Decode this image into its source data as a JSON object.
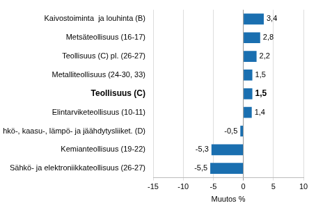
{
  "chart_data": {
    "type": "bar",
    "orientation": "horizontal",
    "x_label": "Muutos %",
    "categories": [
      "Kaivostoiminta  ja louhinta (B)",
      "Metsäteollisuus (16-17)",
      "Teollisuus (C) pl. (26-27)",
      "Metalliteollisuus (24-30, 33)",
      "Teollisuus (C)",
      "Elintarviketeollisuus (10-11)",
      "Sähkö-, kaasu-, lämpö- ja jäähdytysliiket. (D)",
      "Kemianteollisuus (19-22)",
      "Sähkö- ja elektroniikkateollisuus (26-27)"
    ],
    "values": [
      3.4,
      2.8,
      2.2,
      1.5,
      1.5,
      1.4,
      -0.5,
      -5.3,
      -5.5
    ],
    "value_labels": [
      "3,4",
      "2,8",
      "2,2",
      "1,5",
      "1,5",
      "1,4",
      "-0,5",
      "-5,3",
      "-5,5"
    ],
    "data_labels": true,
    "color": "#1a6fb0",
    "xlim": [
      -15,
      10
    ],
    "xticks": [
      -15,
      -10,
      -5,
      0,
      5,
      10
    ],
    "grid": true
  }
}
